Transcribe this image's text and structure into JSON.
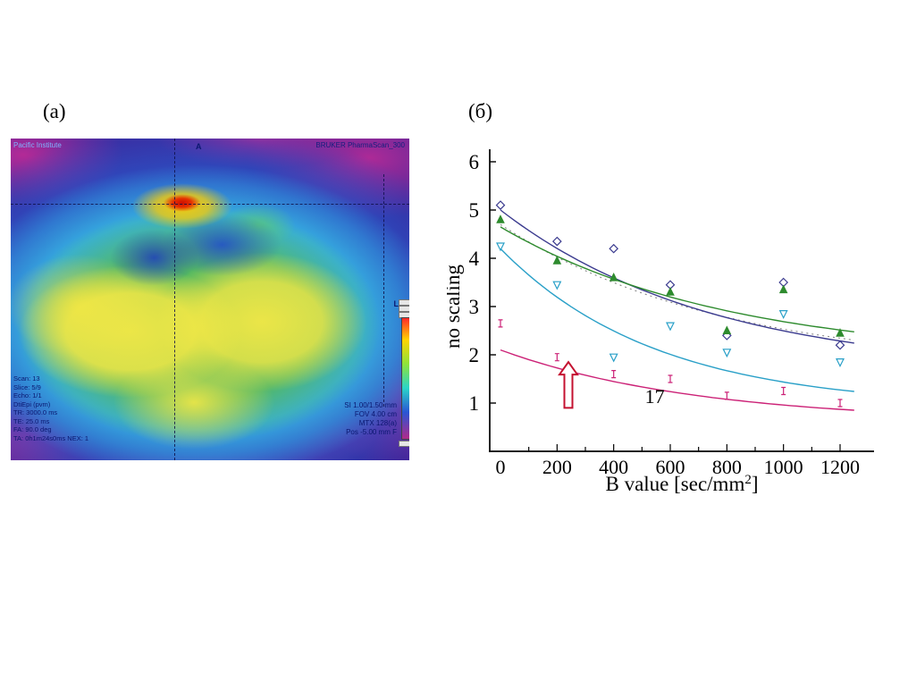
{
  "panel_labels": {
    "a": "(a)",
    "b": "(б)"
  },
  "mri": {
    "top_left": "Pacific Institute",
    "orientation_top": "A",
    "top_right": "BRUKER PharmaScan_300",
    "orientation_right": "L",
    "info_left": [
      "Scan: 13",
      "Slice: 5/9",
      "Echo: 1/1",
      "DtiEpi (pvm)",
      "TR: 3000.0 ms",
      "TE: 25.0 ms",
      "FA: 90.0 deg",
      "TA: 0h1m24s0ms NEX: 1"
    ],
    "info_right": [
      "SI 1.00/1.50 mm",
      "FOV 4.00 cm",
      "MTX 128(a)",
      "Pos -5.00 mm F"
    ],
    "colormap_palette": [
      "#cc0f00",
      "#ffd400",
      "#f3e846",
      "#58b84a",
      "#39c7e8",
      "#2a55c8",
      "#ba2a96",
      "#35269b"
    ]
  },
  "chart_data": {
    "type": "scatter",
    "title": "",
    "xlabel": {
      "pre": "B value [sec/mm",
      "sup": "2",
      "post": "]"
    },
    "ylabel": "no scaling",
    "xlim": [
      0,
      1250
    ],
    "ylim": [
      0,
      6
    ],
    "grid": false,
    "legend": "none",
    "x_ticks": [
      0,
      200,
      400,
      600,
      800,
      1000,
      1200
    ],
    "y_ticks": [
      1,
      2,
      3,
      4,
      5,
      6
    ],
    "x": [
      0,
      200,
      400,
      600,
      800,
      1000,
      1200
    ],
    "series": [
      {
        "name": "series-navy",
        "color": "#3b3b8f",
        "marker": "diamond",
        "values": [
          5.1,
          4.35,
          4.2,
          3.45,
          2.4,
          3.5,
          2.2
        ],
        "fit": {
          "a": 3.4,
          "c": 1.6,
          "tau": 750
        }
      },
      {
        "name": "series-green",
        "color": "#2e8b2e",
        "marker": "triangle-up",
        "values": [
          4.8,
          3.95,
          3.6,
          3.3,
          2.5,
          3.35,
          2.45
        ],
        "fit": {
          "a": 2.75,
          "c": 1.9,
          "tau": 800
        }
      },
      {
        "name": "series-cyan",
        "color": "#2aa0c8",
        "marker": "triangle-down",
        "values": [
          4.25,
          3.45,
          1.95,
          2.6,
          2.05,
          2.85,
          1.85
        ],
        "fit": {
          "a": 3.3,
          "c": 0.9,
          "tau": 550
        }
      },
      {
        "name": "series-magenta",
        "color": "#cc2277",
        "marker": "errorbar",
        "values": [
          2.65,
          1.95,
          1.6,
          1.5,
          1.15,
          1.25,
          1.0
        ],
        "fit": {
          "a": 1.5,
          "c": 0.6,
          "tau": 700
        }
      }
    ],
    "dotted_fit": {
      "color": "#888888",
      "a": 3.0,
      "c": 1.7,
      "tau": 780
    },
    "annotations": {
      "arrow": {
        "x": 240,
        "y_from": 0.9,
        "y_to": 1.85
      },
      "arrow_color": "#c41230",
      "label": {
        "text": "17",
        "x": 545,
        "y": 1.0
      }
    }
  }
}
